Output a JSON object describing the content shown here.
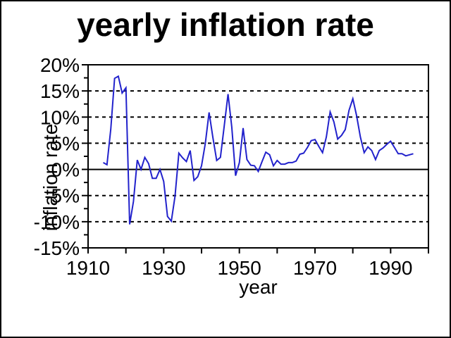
{
  "chart_data": {
    "type": "line",
    "title": "yearly inflation rate",
    "xlabel": "year",
    "ylabel": "inflation rate",
    "xlim": [
      1910,
      2000
    ],
    "ylim": [
      -15,
      20
    ],
    "grid": "dashed horizontal lines at major y ticks, solid line at 0%",
    "legend": "none",
    "line_color": "#2222CC",
    "axis_color": "#000000",
    "background_color": "#FFFFFF",
    "y_ticks": [
      {
        "v": 20,
        "label": "20%"
      },
      {
        "v": 15,
        "label": "15%"
      },
      {
        "v": 10,
        "label": "10%"
      },
      {
        "v": 5,
        "label": "5%"
      },
      {
        "v": 0,
        "label": "0%"
      },
      {
        "v": -5,
        "label": "-5%"
      },
      {
        "v": -10,
        "label": "-10%"
      },
      {
        "v": -15,
        "label": "-15%"
      }
    ],
    "y_minor_ticks": [
      17.5,
      12.5,
      7.5,
      2.5,
      -2.5,
      -7.5,
      -12.5
    ],
    "gridlines_dashed_at": [
      15,
      10,
      5,
      -5,
      -10
    ],
    "zero_line": true,
    "x_ticks": [
      1910,
      1920,
      1930,
      1940,
      1950,
      1960,
      1970,
      1980,
      1990,
      2000
    ],
    "x_labeled_ticks": [
      {
        "v": 1910,
        "label": "1910"
      },
      {
        "v": 1930,
        "label": "1930"
      },
      {
        "v": 1950,
        "label": "1950"
      },
      {
        "v": 1970,
        "label": "1970"
      },
      {
        "v": 1990,
        "label": "1990"
      }
    ],
    "series": [
      {
        "name": "yearly inflation rate",
        "x": [
          1914,
          1915,
          1916,
          1917,
          1918,
          1919,
          1920,
          1921,
          1922,
          1923,
          1924,
          1925,
          1926,
          1927,
          1928,
          1929,
          1930,
          1931,
          1932,
          1933,
          1934,
          1935,
          1936,
          1937,
          1938,
          1939,
          1940,
          1941,
          1942,
          1943,
          1944,
          1945,
          1946,
          1947,
          1948,
          1949,
          1950,
          1951,
          1952,
          1953,
          1954,
          1955,
          1956,
          1957,
          1958,
          1959,
          1960,
          1961,
          1962,
          1963,
          1964,
          1965,
          1966,
          1967,
          1968,
          1969,
          1970,
          1971,
          1972,
          1973,
          1974,
          1975,
          1976,
          1977,
          1978,
          1979,
          1980,
          1981,
          1982,
          1983,
          1984,
          1985,
          1986,
          1987,
          1988,
          1989,
          1990,
          1991,
          1992,
          1993,
          1994,
          1995,
          1996
        ],
        "values": [
          1.3,
          0.9,
          7.7,
          17.4,
          17.8,
          14.6,
          15.6,
          -10.5,
          -6.1,
          1.8,
          0.0,
          2.3,
          1.1,
          -1.7,
          -1.7,
          0.0,
          -2.3,
          -9.0,
          -9.9,
          -5.1,
          3.1,
          2.2,
          1.5,
          3.6,
          -2.1,
          -1.4,
          0.7,
          5.0,
          10.9,
          6.1,
          1.7,
          2.3,
          8.3,
          14.4,
          8.1,
          -1.2,
          1.3,
          7.9,
          1.9,
          0.8,
          0.7,
          -0.4,
          1.5,
          3.3,
          2.8,
          0.7,
          1.7,
          1.0,
          1.0,
          1.3,
          1.3,
          1.6,
          2.9,
          3.1,
          4.2,
          5.5,
          5.7,
          4.4,
          3.2,
          6.2,
          11.0,
          9.1,
          5.8,
          6.5,
          7.6,
          11.3,
          13.5,
          10.3,
          6.2,
          3.2,
          4.3,
          3.6,
          1.9,
          3.6,
          4.1,
          4.8,
          5.4,
          4.2,
          3.0,
          3.0,
          2.6,
          2.8,
          3.0
        ]
      }
    ]
  }
}
